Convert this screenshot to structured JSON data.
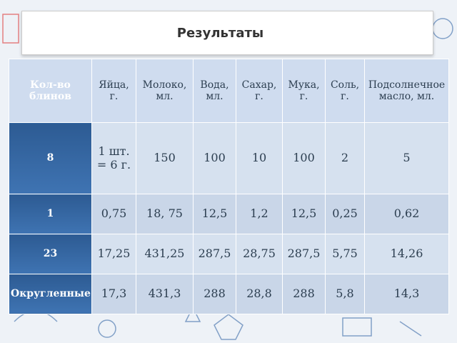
{
  "header": {
    "title": "Результаты"
  },
  "table": {
    "columns": [
      "Кол-во блинов",
      "Яйца, г.",
      "Молоко, мл.",
      "Вода, мл.",
      "Сахар, г.",
      "Мука, г.",
      "Соль, г.",
      "Подсолнечное масло, мл."
    ],
    "rows": [
      [
        "8",
        "1 шт. = 6 г.",
        "150",
        "100",
        "10",
        "100",
        "2",
        "5"
      ],
      [
        "1",
        "0,75",
        "18, 75",
        "12,5",
        "1,2",
        "12,5",
        "0,25",
        "0,62"
      ],
      [
        "23",
        "17,25",
        "431,25",
        "287,5",
        "28,75",
        "287,5",
        "5,75",
        "14,26"
      ],
      [
        "Округленные",
        "17,3",
        "431,3",
        "288",
        "28,8",
        "288",
        "5,8",
        "14,3"
      ]
    ]
  }
}
